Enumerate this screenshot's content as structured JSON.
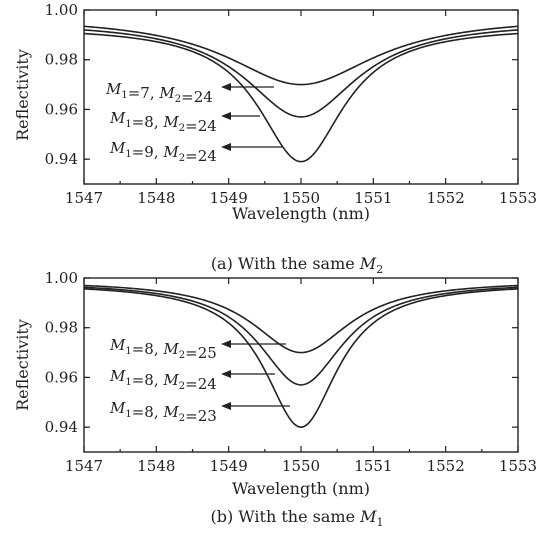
{
  "chart_data": [
    {
      "type": "line",
      "caption": {
        "prefix": "(a)  With the same ",
        "var": "M",
        "sub": "2"
      },
      "xlabel": "Wavelength (nm)",
      "ylabel": "Reflectivity",
      "xlim": [
        1547,
        1553
      ],
      "ylim": [
        0.93,
        1.0
      ],
      "xticks": [
        "1547",
        "1548",
        "1549",
        "1550",
        "1551",
        "1552",
        "1553"
      ],
      "yticks": [
        "0.94",
        "0.96",
        "0.98",
        "1.00"
      ],
      "series": [
        {
          "min": 0.97,
          "edge": 0.9975,
          "width": 1.25,
          "label": {
            "M1": "7",
            "M2": "24"
          }
        },
        {
          "min": 0.957,
          "edge": 0.9955,
          "width": 0.95,
          "label": {
            "M1": "8",
            "M2": "24"
          }
        },
        {
          "min": 0.939,
          "edge": 0.9935,
          "width": 0.72,
          "label": {
            "M1": "9",
            "M2": "24"
          }
        }
      ]
    },
    {
      "type": "line",
      "caption": {
        "prefix": "(b)  With the same ",
        "var": "M",
        "sub": "1"
      },
      "xlabel": "Wavelength (nm)",
      "ylabel": "Reflectivity",
      "xlim": [
        1547,
        1553
      ],
      "ylim": [
        0.93,
        1.0
      ],
      "xticks": [
        "1547",
        "1548",
        "1549",
        "1550",
        "1551",
        "1552",
        "1553"
      ],
      "yticks": [
        "0.94",
        "0.96",
        "0.98",
        "1.00"
      ],
      "series": [
        {
          "min": 0.97,
          "edge": 0.999,
          "width": 0.82,
          "label": {
            "M1": "8",
            "M2": "25"
          }
        },
        {
          "min": 0.957,
          "edge": 0.9985,
          "width": 0.72,
          "label": {
            "M1": "8",
            "M2": "24"
          }
        },
        {
          "min": 0.94,
          "edge": 0.998,
          "width": 0.62,
          "label": {
            "M1": "8",
            "M2": "23"
          }
        }
      ]
    }
  ]
}
